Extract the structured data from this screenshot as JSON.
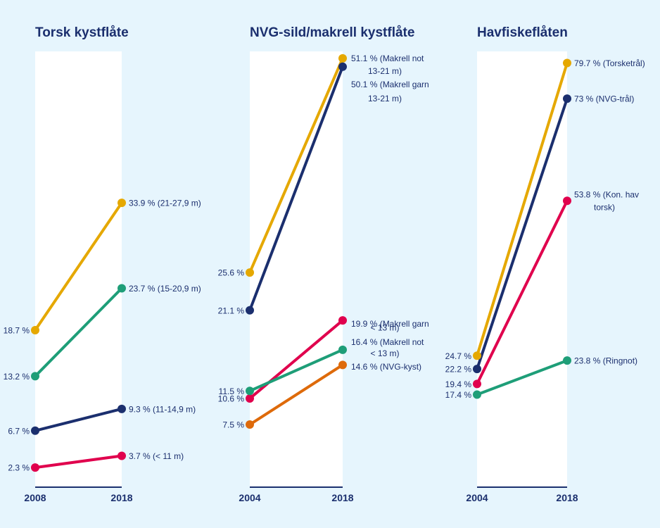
{
  "colors": {
    "background": "#e6f5fd",
    "panel": "#ffffff",
    "text": "#1b2f6e",
    "axis": "#1b2f6e"
  },
  "chart_data": [
    {
      "type": "line",
      "title": "Torsk kystflåte",
      "x": [
        "2008",
        "2018"
      ],
      "unit": "%",
      "series": [
        {
          "name": "21-27,9 m",
          "color": "#e5a800",
          "values": [
            18.7,
            33.9
          ],
          "start_label": "18.7 %",
          "end_label": [
            "33.9 % (21-27,9 m)"
          ]
        },
        {
          "name": "15-20,9 m",
          "color": "#1e9e78",
          "values": [
            13.2,
            23.7
          ],
          "start_label": "13.2 %",
          "end_label": [
            "23.7 % (15-20,9 m)"
          ]
        },
        {
          "name": "11-14,9 m",
          "color": "#1b2f6e",
          "values": [
            6.7,
            9.3
          ],
          "start_label": "6.7 %",
          "end_label": [
            "9.3 % (11-14,9 m)"
          ]
        },
        {
          "name": "< 11 m",
          "color": "#e0004d",
          "values": [
            2.3,
            3.7
          ],
          "start_label": "2.3 %",
          "end_label": [
            "3.7 % (< 11 m)"
          ]
        }
      ]
    },
    {
      "type": "line",
      "title": "NVG-sild/makrell kystflåte",
      "x": [
        "2004",
        "2018"
      ],
      "unit": "%",
      "series": [
        {
          "name": "Makrell not 13-21 m",
          "color": "#e5a800",
          "values": [
            25.6,
            51.1
          ],
          "start_label": "25.6 %",
          "end_label": [
            "51.1 % (Makrell not",
            "13-21 m)"
          ]
        },
        {
          "name": "Makrell garn 13-21 m",
          "color": "#1b2f6e",
          "values": [
            21.1,
            50.1
          ],
          "start_label": "21.1 %",
          "end_label": [
            "50.1 % (Makrell garn",
            "13-21 m)"
          ]
        },
        {
          "name": "Makrell garn < 13 m",
          "color": "#e0004d",
          "values": [
            10.6,
            19.9
          ],
          "start_label": "10.6 %",
          "end_label": [
            "19.9 % (Makrell garn",
            "< 13 m)"
          ]
        },
        {
          "name": "Makrell not < 13 m",
          "color": "#1e9e78",
          "values": [
            11.5,
            16.4
          ],
          "start_label": "11.5 %",
          "end_label": [
            "16.4 % (Makrell not",
            "< 13 m)"
          ]
        },
        {
          "name": "NVG-kyst",
          "color": "#de6a0a",
          "values": [
            7.5,
            14.6
          ],
          "start_label": "7.5 %",
          "end_label": [
            "14.6 % (NVG-kyst)"
          ]
        }
      ]
    },
    {
      "type": "line",
      "title": "Havfiskeflåten",
      "x": [
        "2004",
        "2018"
      ],
      "unit": "%",
      "series": [
        {
          "name": "Torsketrål",
          "color": "#e5a800",
          "values": [
            24.7,
            79.7
          ],
          "start_label": "24.7 %",
          "end_label": [
            "79.7 % (Torsketrål)"
          ]
        },
        {
          "name": "NVG-trål",
          "color": "#1b2f6e",
          "values": [
            22.2,
            73
          ],
          "start_label": "22.2 %",
          "end_label": [
            "73 % (NVG-trål)"
          ]
        },
        {
          "name": "Kon. hav torsk",
          "color": "#e0004d",
          "values": [
            19.4,
            53.8
          ],
          "start_label": "19.4 %",
          "end_label": [
            "53.8 % (Kon. hav",
            "torsk)"
          ]
        },
        {
          "name": "Ringnot",
          "color": "#1e9e78",
          "values": [
            17.4,
            23.8
          ],
          "start_label": "17.4 %",
          "end_label": [
            "23.8 % (Ringnot)"
          ]
        }
      ]
    }
  ]
}
